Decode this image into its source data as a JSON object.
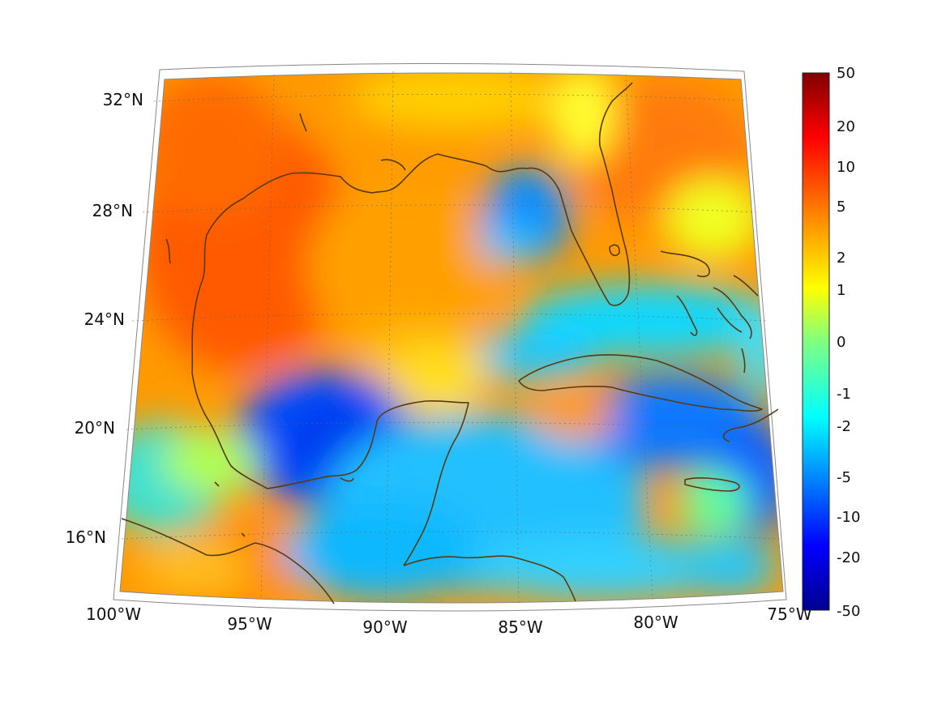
{
  "map": {
    "latitude_labels": [
      "32°N",
      "28°N",
      "24°N",
      "20°N",
      "16°N"
    ],
    "longitude_labels": [
      "100°W",
      "95°W",
      "90°W",
      "85°W",
      "80°W",
      "75°W"
    ],
    "colorbar_labels": [
      "50",
      "20",
      "10",
      "5",
      "2",
      "1",
      "0",
      "-1",
      "-2",
      "-5",
      "-10",
      "-20",
      "-50"
    ],
    "colormap": [
      "#00008f",
      "#0000ff",
      "#0080ff",
      "#00ffff",
      "#80ff80",
      "#ffff00",
      "#ff8000",
      "#ff0000",
      "#800000"
    ],
    "coastline_color": "#5a3a10"
  }
}
